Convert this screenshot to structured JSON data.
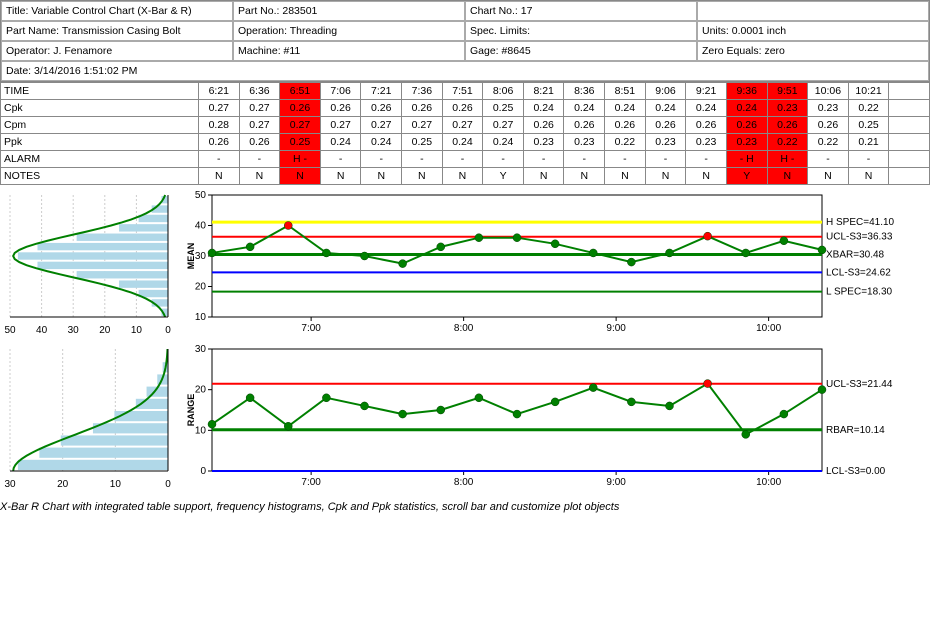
{
  "header": {
    "title_label": "Title:",
    "title": "Variable Control Chart (X-Bar & R)",
    "partno_label": "Part No.:",
    "partno": "283501",
    "chartno_label": "Chart No.:",
    "chartno": "17",
    "partname_label": "Part Name:",
    "partname": "Transmission Casing Bolt",
    "operation_label": "Operation:",
    "operation": "Threading",
    "speclimits_label": "Spec. Limits:",
    "speclimits": "",
    "units_label": "Units:",
    "units": "0.0001 inch",
    "operator_label": "Operator:",
    "operator": "J. Fenamore",
    "machine_label": "Machine:",
    "machine": "#11",
    "gage_label": "Gage:",
    "gage": "#8645",
    "zero_label": "Zero Equals:",
    "zero": "zero",
    "date_label": "Date:",
    "date": "3/14/2016 1:51:02 PM"
  },
  "table": {
    "row_labels": [
      "TIME",
      "Cpk",
      "Cpm",
      "Ppk",
      "ALARM",
      "NOTES"
    ],
    "times": [
      "6:21",
      "6:36",
      "6:51",
      "7:06",
      "7:21",
      "7:36",
      "7:51",
      "8:06",
      "8:21",
      "8:36",
      "8:51",
      "9:06",
      "9:21",
      "9:36",
      "9:51",
      "10:06",
      "10:21"
    ],
    "cpk": [
      "0.27",
      "0.27",
      "0.26",
      "0.26",
      "0.26",
      "0.26",
      "0.26",
      "0.25",
      "0.24",
      "0.24",
      "0.24",
      "0.24",
      "0.24",
      "0.24",
      "0.23",
      "0.23",
      "0.22"
    ],
    "cpm": [
      "0.28",
      "0.27",
      "0.27",
      "0.27",
      "0.27",
      "0.27",
      "0.27",
      "0.27",
      "0.26",
      "0.26",
      "0.26",
      "0.26",
      "0.26",
      "0.26",
      "0.26",
      "0.26",
      "0.25"
    ],
    "ppk": [
      "0.26",
      "0.26",
      "0.25",
      "0.24",
      "0.24",
      "0.25",
      "0.24",
      "0.24",
      "0.23",
      "0.23",
      "0.22",
      "0.23",
      "0.23",
      "0.23",
      "0.22",
      "0.22",
      "0.21"
    ],
    "alarm": [
      "-",
      "-",
      "H  -",
      "-",
      "-",
      "-",
      "-",
      "-",
      "-",
      "-",
      "-",
      "-",
      "-",
      "-  H",
      "H  -",
      "-",
      "-"
    ],
    "notes": [
      "N",
      "N",
      "N",
      "N",
      "N",
      "N",
      "N",
      "Y",
      "N",
      "N",
      "N",
      "N",
      "N",
      "Y",
      "N",
      "N",
      "N"
    ],
    "red_cols": [
      2,
      13,
      14
    ]
  },
  "mean_chart": {
    "ylim": [
      10,
      50
    ],
    "yticks": [
      10,
      20,
      30,
      40,
      50
    ],
    "xticks": [
      "7:00",
      "8:00",
      "9:00",
      "10:00"
    ],
    "lines": [
      {
        "label": "H SPEC=41.10",
        "y": 41.1,
        "color": "#ffff00",
        "width": 3
      },
      {
        "label": "UCL-S3=36.33",
        "y": 36.33,
        "color": "#ff0000",
        "width": 2
      },
      {
        "label": "XBAR=30.48",
        "y": 30.48,
        "color": "#008000",
        "width": 3
      },
      {
        "label": "LCL-S3=24.62",
        "y": 24.62,
        "color": "#0000ff",
        "width": 2
      },
      {
        "label": "L SPEC=18.30",
        "y": 18.3,
        "color": "#008000",
        "width": 2
      }
    ],
    "points": [
      31,
      33,
      40,
      31,
      30,
      27.5,
      33,
      36,
      36,
      34,
      31,
      28,
      31,
      36.5,
      31,
      35,
      32
    ],
    "red_pts": [
      2,
      13
    ],
    "series_color": "#008000",
    "marker_fill": "#008000",
    "red_marker": "#ff0000",
    "marker_r": 4
  },
  "range_chart": {
    "ylim": [
      0,
      30
    ],
    "yticks": [
      0,
      10,
      20,
      30
    ],
    "xticks": [
      "7:00",
      "8:00",
      "9:00",
      "10:00"
    ],
    "lines": [
      {
        "label": "UCL-S3=21.44",
        "y": 21.44,
        "color": "#ff0000",
        "width": 2
      },
      {
        "label": "RBAR=10.14",
        "y": 10.14,
        "color": "#008000",
        "width": 3
      },
      {
        "label": "LCL-S3=0.00",
        "y": 0.0,
        "color": "#0000ff",
        "width": 2
      }
    ],
    "points": [
      11.5,
      18,
      11,
      18,
      16,
      14,
      15,
      18,
      14,
      17,
      20.5,
      17,
      16,
      21.5,
      9,
      14,
      20
    ],
    "red_pts": [
      13
    ],
    "series_color": "#008000",
    "marker_fill": "#008000",
    "red_marker": "#ff0000",
    "marker_r": 4
  },
  "hist_mean": {
    "xticks": [
      50,
      40,
      30,
      20,
      10,
      0
    ],
    "bars": [
      2,
      5,
      9,
      15,
      28,
      40,
      46,
      40,
      28,
      15,
      9,
      5,
      2
    ],
    "bar_color": "#b0d8e8",
    "curve_color": "#008000"
  },
  "hist_range": {
    "xticks": [
      30,
      20,
      10,
      0
    ],
    "bars": [
      28,
      24,
      20,
      14,
      10,
      6,
      4,
      2,
      1,
      0
    ],
    "bar_color": "#b0d8e8",
    "curve_color": "#008000"
  },
  "caption": "X-Bar R Chart with integrated table support, frequency histograms, Cpk and Ppk statistics, scroll bar and customize plot objects",
  "colors": {
    "grid": "#cccccc",
    "axis": "#000000",
    "text": "#000000"
  }
}
